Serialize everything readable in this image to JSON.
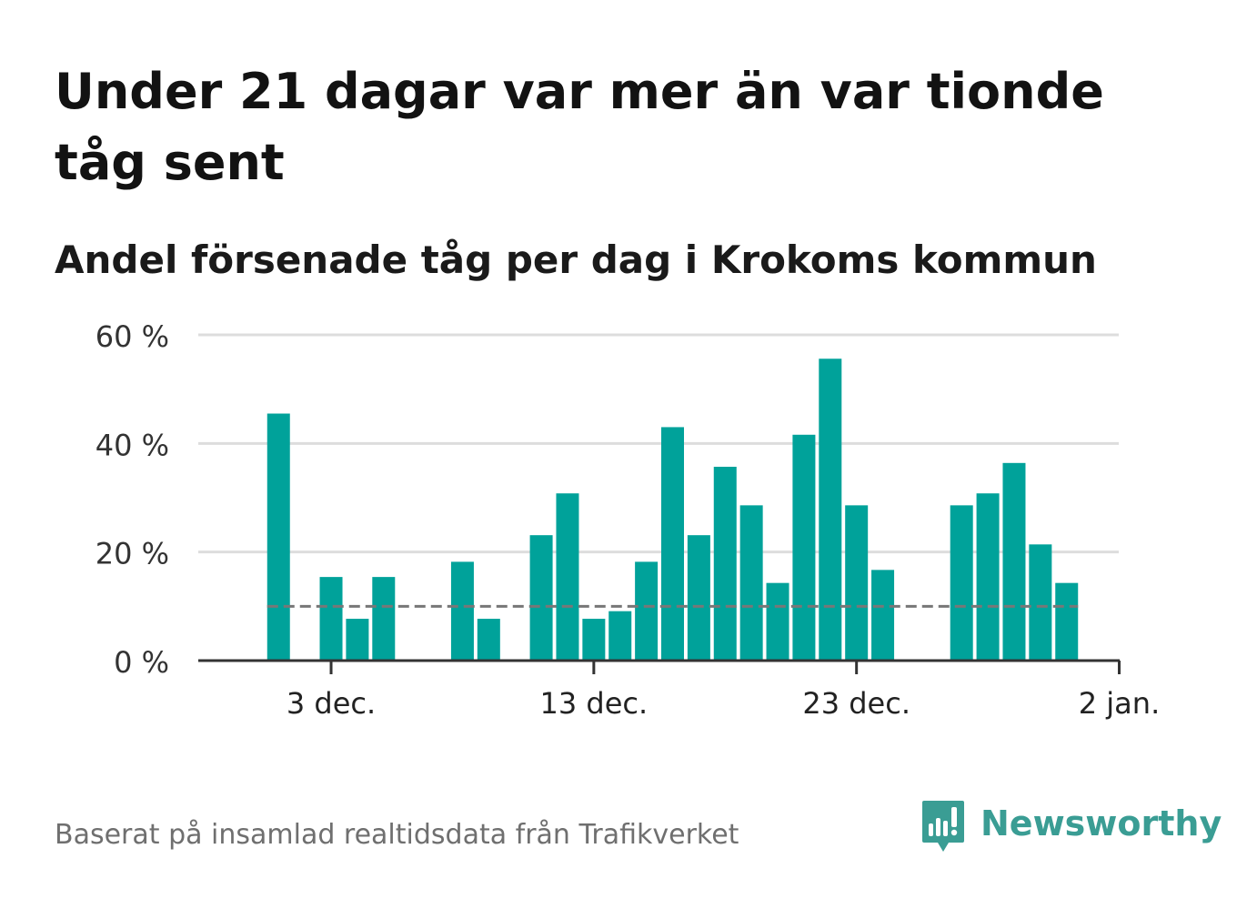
{
  "title": "Under 21 dagar var mer än var tionde tåg sent",
  "subtitle": "Andel försenade tåg per dag i Krokoms kommun",
  "footer": {
    "source": "Baserat på insamlad realtidsdata från Trafikverket",
    "brand": "Newsworthy"
  },
  "colors": {
    "bar": "#00a29a",
    "grid": "#dddddd",
    "axis": "#333333",
    "reference_line": "#777777",
    "brand": "#3a9d94"
  },
  "icons": {
    "brand_logo": "newsworthy-logo-icon"
  },
  "chart_data": {
    "type": "bar",
    "title": "Andel försenade tåg per dag i Krokoms kommun",
    "xlabel": "",
    "ylabel": "",
    "x_range": [
      "2023-11-29",
      "2024-01-02"
    ],
    "ylim": [
      0,
      60
    ],
    "y_ticks": [
      0,
      20,
      40,
      60
    ],
    "y_tick_labels": [
      "0 %",
      "20 %",
      "40 %",
      "60 %"
    ],
    "x_ticks": [
      "2023-12-03",
      "2023-12-13",
      "2023-12-23",
      "2024-01-02"
    ],
    "x_tick_labels": [
      "3 dec.",
      "13 dec.",
      "23 dec.",
      "2 jan."
    ],
    "grid": true,
    "reference_line": {
      "value": 10,
      "style": "dashed"
    },
    "dates": [
      "2023-12-01",
      "2023-12-02",
      "2023-12-03",
      "2023-12-04",
      "2023-12-05",
      "2023-12-06",
      "2023-12-07",
      "2023-12-08",
      "2023-12-09",
      "2023-12-10",
      "2023-12-11",
      "2023-12-12",
      "2023-12-13",
      "2023-12-14",
      "2023-12-15",
      "2023-12-16",
      "2023-12-17",
      "2023-12-18",
      "2023-12-19",
      "2023-12-20",
      "2023-12-21",
      "2023-12-22",
      "2023-12-23",
      "2023-12-24",
      "2023-12-25",
      "2023-12-26",
      "2023-12-27",
      "2023-12-28",
      "2023-12-29",
      "2023-12-30",
      "2023-12-31"
    ],
    "values": [
      45.5,
      0,
      15.4,
      7.7,
      15.4,
      0,
      0,
      18.2,
      7.7,
      0,
      23.1,
      30.8,
      7.7,
      9.1,
      18.2,
      43.0,
      23.1,
      35.7,
      28.6,
      14.3,
      41.6,
      55.6,
      28.6,
      16.7,
      0,
      0,
      28.6,
      30.8,
      36.4,
      21.4,
      14.3
    ]
  }
}
